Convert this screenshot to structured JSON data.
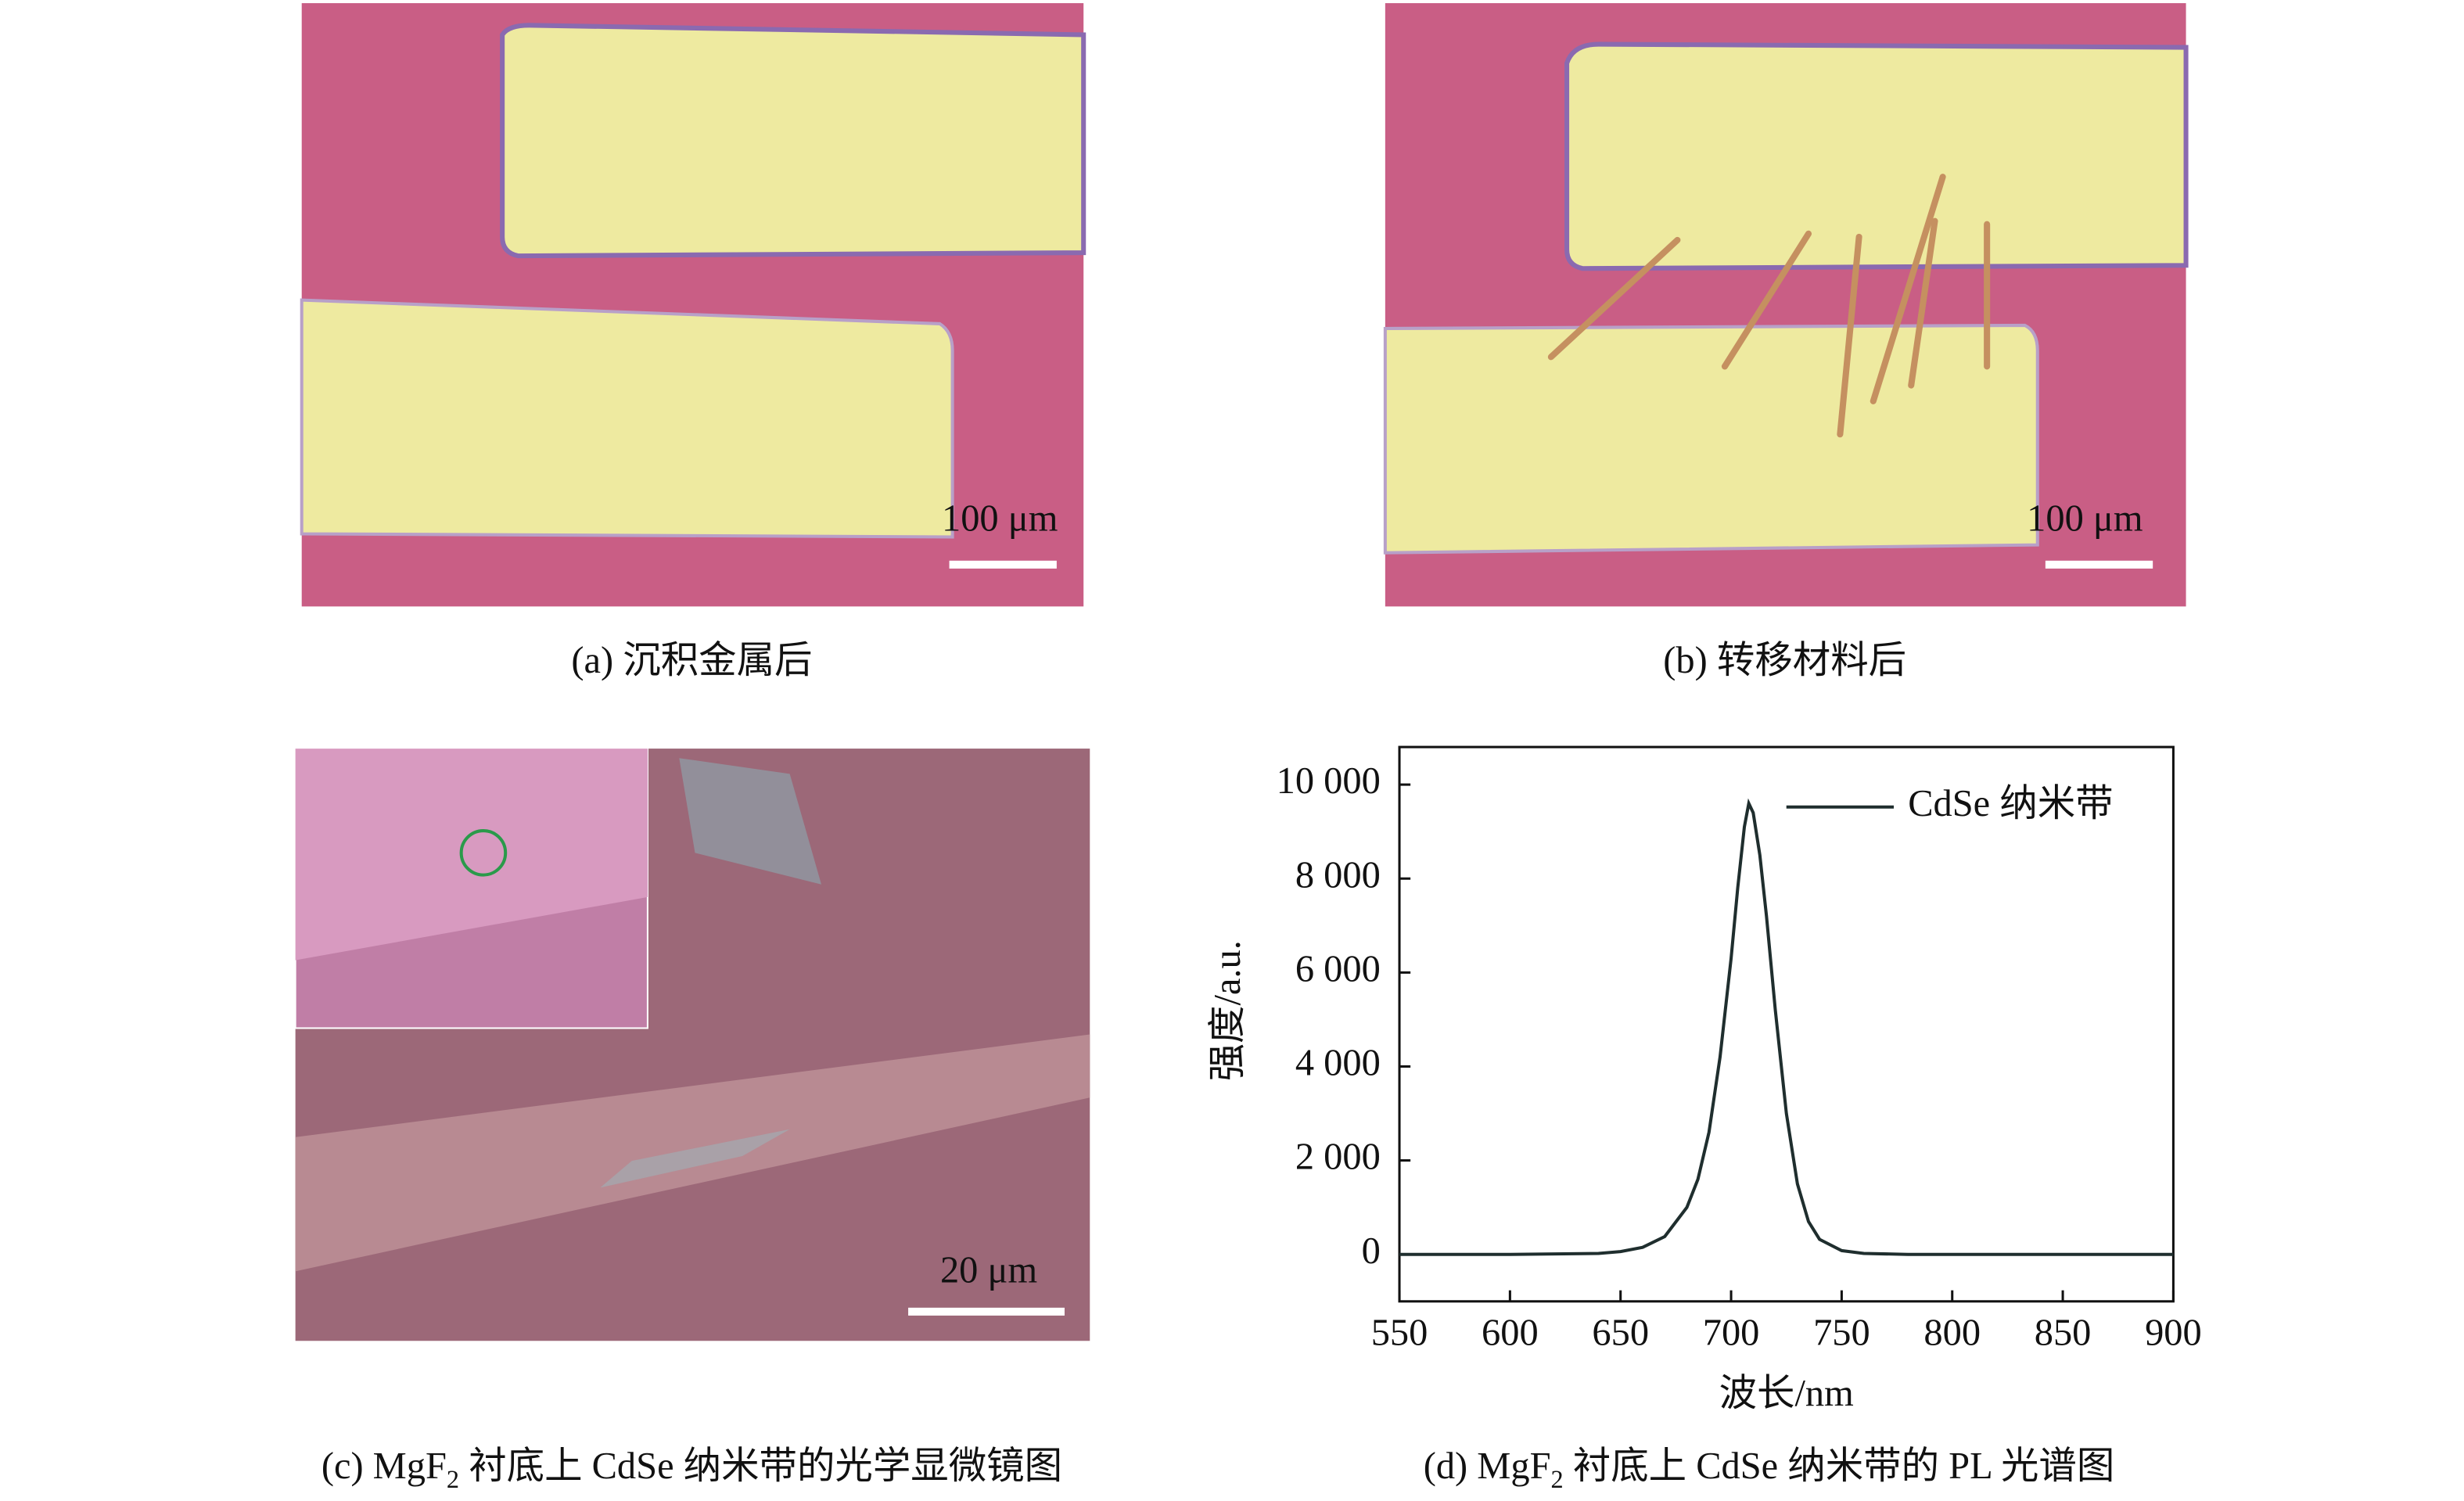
{
  "panels": [
    {
      "caption": "(a) 沉积金属后",
      "scale_bar": "100 μm"
    },
    {
      "caption": "(b) 转移材料后",
      "scale_bar": "100 μm"
    },
    {
      "caption": {
        "prefix": "(c) MgF",
        "sub": "2",
        "rest": " 衬底上 CdSe 纳米带的光学显微镜图"
      },
      "scale_bar": "20 μm"
    }
  ],
  "chart_caption": {
    "prefix": "(d) MgF",
    "sub": "2",
    "rest": " 衬底上 CdSe 纳米带的 PL 光谱图"
  },
  "chart_data": {
    "type": "line",
    "x_label": "波长/nm",
    "y_label": "强度/a.u.",
    "x": [
      550,
      600,
      640,
      650,
      660,
      670,
      680,
      685,
      690,
      695,
      700,
      703,
      706,
      708,
      710,
      713,
      716,
      720,
      725,
      730,
      735,
      740,
      750,
      760,
      780,
      800,
      850,
      900
    ],
    "series": [
      {
        "name": "CdSe 纳米带",
        "color": "#1f2e2e",
        "values": [
          0,
          0,
          20,
          60,
          150,
          380,
          1000,
          1600,
          2600,
          4200,
          6300,
          7800,
          9100,
          9600,
          9400,
          8500,
          7200,
          5200,
          3000,
          1500,
          700,
          320,
          80,
          20,
          0,
          0,
          0,
          0
        ]
      }
    ],
    "xlim": [
      550,
      900
    ],
    "ylim": [
      -1000,
      10800
    ],
    "xticks": [
      550,
      600,
      650,
      700,
      750,
      800,
      850,
      900
    ],
    "yticks": [
      0,
      {
        "value": 2000,
        "label": "2 000"
      },
      {
        "value": 4000,
        "label": "4 000"
      },
      {
        "value": 6000,
        "label": "6 000"
      },
      {
        "value": 8000,
        "label": "8 000"
      },
      {
        "value": 10000,
        "label": "10 000"
      }
    ],
    "legend": "upper right"
  }
}
